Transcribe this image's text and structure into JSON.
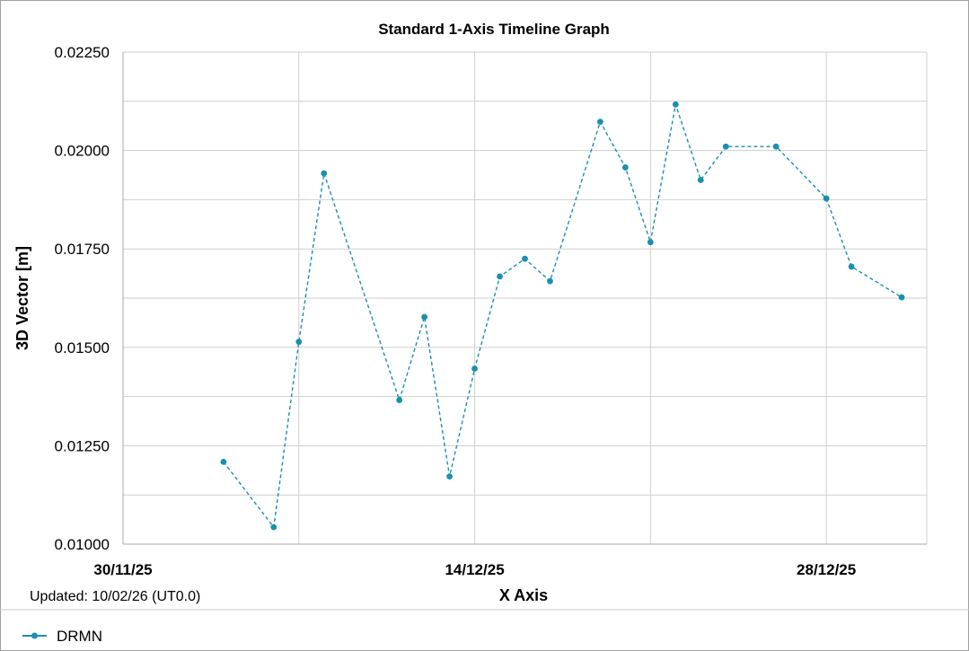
{
  "chart_data": {
    "type": "line",
    "title": "Standard 1-Axis Timeline Graph",
    "ylabel": "3D Vector [m]",
    "xlabel": "X Axis",
    "updated": "Updated: 10/02/26 (UT0.0)",
    "ylim": [
      0.01,
      0.0225
    ],
    "yticks": [
      0.01,
      0.0125,
      0.015,
      0.0175,
      0.02,
      0.0225
    ],
    "ytick_labels": [
      "0.01000",
      "0.01250",
      "0.01500",
      "0.01750",
      "0.02000",
      "0.02250"
    ],
    "xlim": [
      "2025-11-30",
      "2026-01-01"
    ],
    "xticks": [
      "2025-11-30",
      "2025-12-14",
      "2025-12-28"
    ],
    "xtick_labels": [
      "30/11/25",
      "14/12/25",
      "28/12/25"
    ],
    "x_gridlines": [
      "2025-11-30",
      "2025-12-07",
      "2025-12-14",
      "2025-12-21",
      "2025-12-28"
    ],
    "grid": true,
    "legend": "bottom-left",
    "line_style": "dashed",
    "marker": "circle",
    "series": [
      {
        "name": "DRMN",
        "color": "#1a8fb0",
        "x": [
          "2025-12-04",
          "2025-12-06",
          "2025-12-07",
          "2025-12-08",
          "2025-12-11",
          "2025-12-12",
          "2025-12-13",
          "2025-12-14",
          "2025-12-15",
          "2025-12-16",
          "2025-12-17",
          "2025-12-19",
          "2025-12-20",
          "2025-12-21",
          "2025-12-22",
          "2025-12-23",
          "2025-12-24",
          "2025-12-26",
          "2025-12-28",
          "2025-12-29",
          "2025-12-31"
        ],
        "values": [
          0.01209,
          0.01043,
          0.01514,
          0.01942,
          0.01366,
          0.01577,
          0.01172,
          0.01446,
          0.0168,
          0.01725,
          0.01668,
          0.02073,
          0.01957,
          0.01767,
          0.02117,
          0.01925,
          0.0201,
          0.0201,
          0.01878,
          0.01705,
          0.01627
        ]
      }
    ]
  }
}
